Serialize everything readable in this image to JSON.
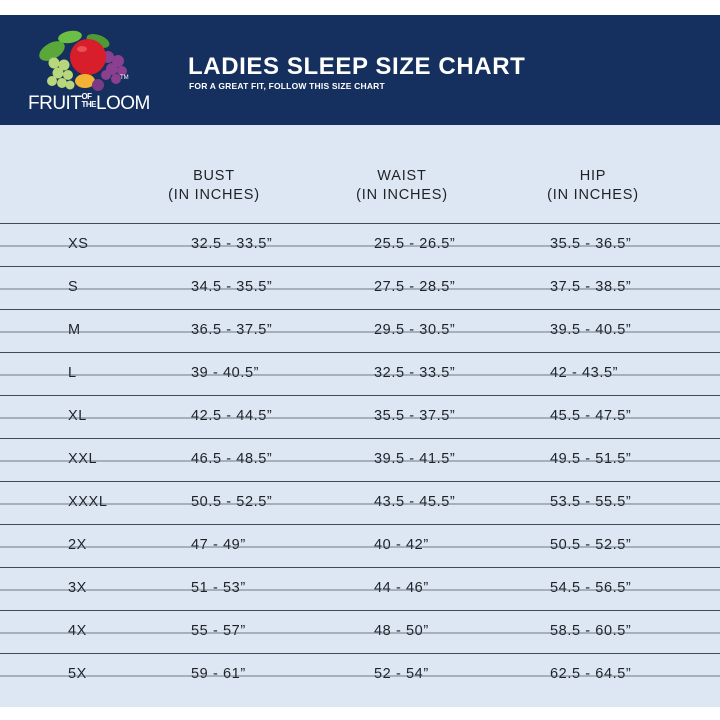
{
  "header": {
    "brand": {
      "part1": "FRUIT",
      "of": "OF",
      "the": "THE",
      "part2": "LOOM",
      "tm": "TM"
    },
    "title": "LADIES SLEEP SIZE CHART",
    "subtitle": "FOR A GREAT FIT, FOLLOW THIS SIZE CHART"
  },
  "columns": [
    {
      "line1": "BUST",
      "line2": "(IN INCHES)"
    },
    {
      "line1": "WAIST",
      "line2": "(IN INCHES)"
    },
    {
      "line1": "HIP",
      "line2": "(IN INCHES)"
    }
  ],
  "rows": [
    {
      "size": "XS",
      "bust": "32.5 - 33.5”",
      "waist": "25.5 - 26.5”",
      "hip": "35.5 - 36.5”"
    },
    {
      "size": "S",
      "bust": "34.5 - 35.5”",
      "waist": "27.5 - 28.5”",
      "hip": "37.5 - 38.5”"
    },
    {
      "size": "M",
      "bust": "36.5 - 37.5”",
      "waist": "29.5 - 30.5”",
      "hip": "39.5 - 40.5”"
    },
    {
      "size": "L",
      "bust": "39 - 40.5”",
      "waist": "32.5 - 33.5”",
      "hip": "42 - 43.5”"
    },
    {
      "size": "XL",
      "bust": "42.5 - 44.5”",
      "waist": "35.5 - 37.5”",
      "hip": "45.5 - 47.5”"
    },
    {
      "size": "XXL",
      "bust": "46.5 - 48.5”",
      "waist": "39.5 - 41.5”",
      "hip": "49.5 - 51.5”"
    },
    {
      "size": "XXXL",
      "bust": "50.5 - 52.5”",
      "waist": "43.5 - 45.5”",
      "hip": "53.5 - 55.5”"
    },
    {
      "size": "2X",
      "bust": "47 - 49”",
      "waist": "40 - 42”",
      "hip": "50.5 - 52.5”"
    },
    {
      "size": "3X",
      "bust": "51 - 53”",
      "waist": "44 - 46”",
      "hip": "54.5 - 56.5”"
    },
    {
      "size": "4X",
      "bust": "55 - 57”",
      "waist": "48 - 50”",
      "hip": "58.5 - 60.5”"
    },
    {
      "size": "5X",
      "bust": "59 - 61”",
      "waist": "52 - 54”",
      "hip": "62.5 - 64.5”"
    }
  ],
  "colors": {
    "header": "#15305e",
    "background": "#dce7f3",
    "rule": "#3e4a58",
    "text": "#1f2126"
  }
}
